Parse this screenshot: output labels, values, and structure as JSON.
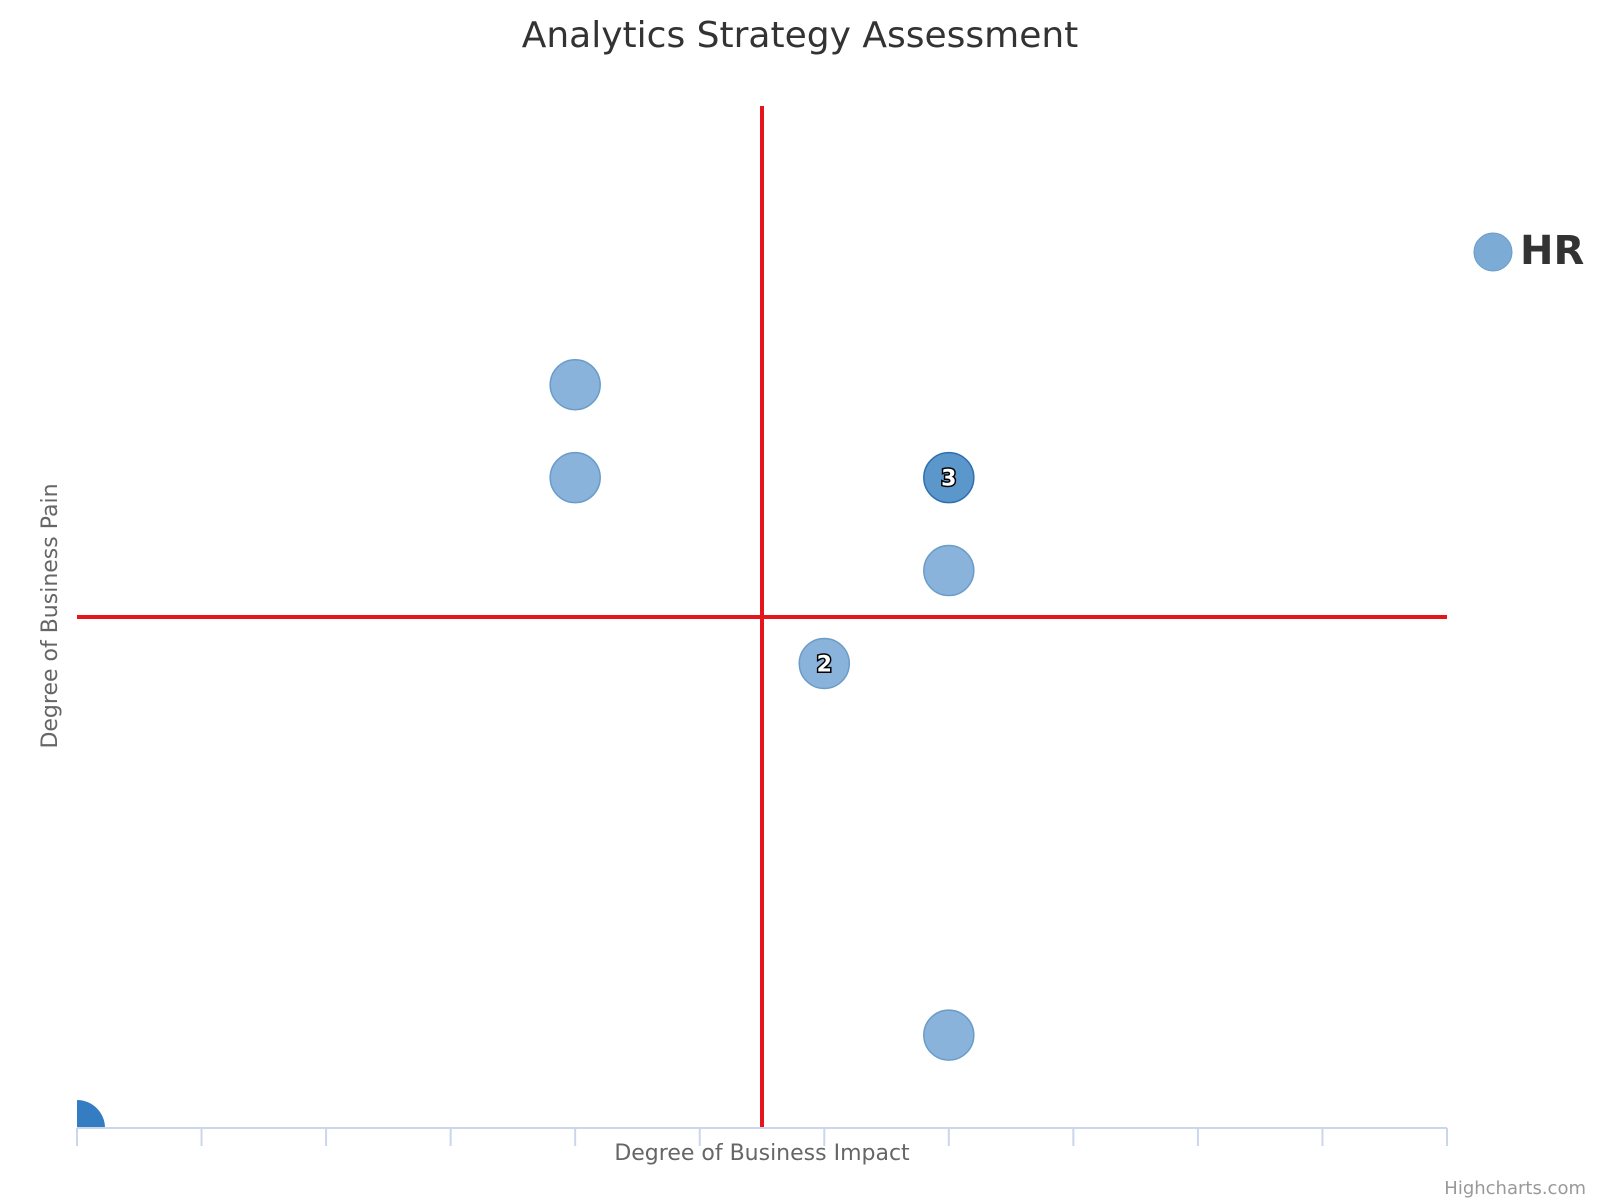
{
  "chart_data": {
    "type": "scatter",
    "title": "Analytics Strategy Assessment",
    "xlabel": "Degree of Business Impact",
    "ylabel": "Degree of Business Pain",
    "xlim": [
      0,
      11
    ],
    "ylim": [
      0,
      11
    ],
    "x_ticks": [
      0,
      1,
      2,
      3,
      4,
      5,
      6,
      7,
      8,
      9,
      10,
      11
    ],
    "quadrant_lines": {
      "x": 5.5,
      "y": 5.5,
      "color": "#e4161b"
    },
    "legend_position": "right",
    "grid": false,
    "series": [
      {
        "name": "HR",
        "color": "#7cabd6",
        "points": [
          {
            "x": 4,
            "y": 8,
            "label": ""
          },
          {
            "x": 4,
            "y": 7,
            "label": ""
          },
          {
            "x": 7,
            "y": 7,
            "label": "3"
          },
          {
            "x": 7,
            "y": 6,
            "label": ""
          },
          {
            "x": 6,
            "y": 5,
            "label": "2"
          },
          {
            "x": 7,
            "y": 1,
            "label": ""
          },
          {
            "x": 0,
            "y": 0,
            "label": ""
          }
        ]
      }
    ]
  },
  "credits": "Highcharts.com"
}
